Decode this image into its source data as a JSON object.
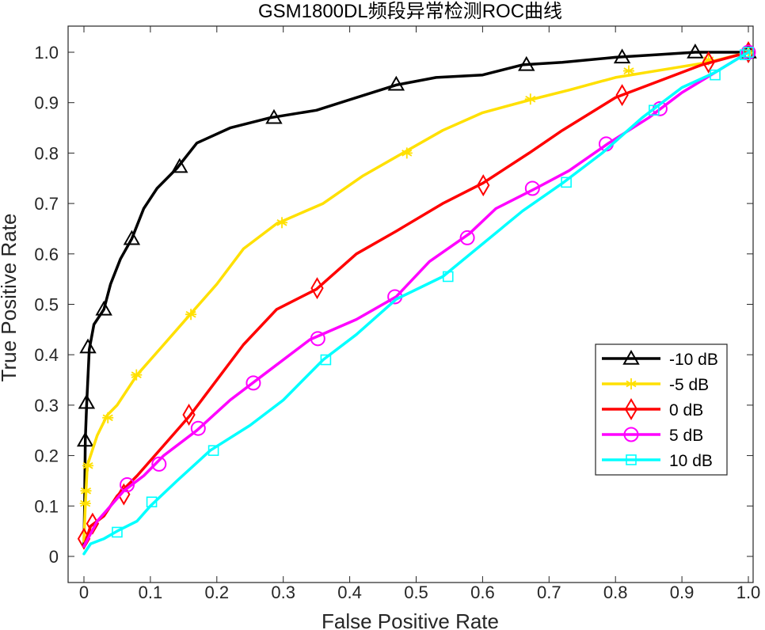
{
  "chart_data": {
    "type": "line",
    "title": "GSM1800DL频段异常检测ROC曲线",
    "xlabel": "False Positive Rate",
    "ylabel": "True Positive Rate",
    "xlim": [
      0,
      1
    ],
    "ylim": [
      0,
      1
    ],
    "xticks": [
      "0",
      "0.1",
      "0.2",
      "0.3",
      "0.4",
      "0.5",
      "0.6",
      "0.7",
      "0.8",
      "0.9",
      "1.0"
    ],
    "yticks": [
      "0",
      "0.1",
      "0.2",
      "0.3",
      "0.4",
      "0.5",
      "0.6",
      "0.7",
      "0.8",
      "0.9",
      "1.0"
    ],
    "grid": false,
    "legend_position": "lower-right",
    "series": [
      {
        "name": "-10 dB",
        "color": "#000000",
        "marker": "triangle",
        "x": [
          0,
          0.001,
          0.002,
          0.004,
          0.008,
          0.015,
          0.03,
          0.04,
          0.055,
          0.072,
          0.09,
          0.11,
          0.14,
          0.17,
          0.22,
          0.28,
          0.35,
          0.41,
          0.47,
          0.53,
          0.6,
          0.66,
          0.72,
          0.8,
          0.86,
          0.92,
          0.97,
          1.0
        ],
        "y": [
          0.02,
          0.1,
          0.23,
          0.3,
          0.41,
          0.46,
          0.49,
          0.54,
          0.59,
          0.63,
          0.69,
          0.73,
          0.77,
          0.82,
          0.85,
          0.87,
          0.885,
          0.91,
          0.935,
          0.95,
          0.955,
          0.975,
          0.98,
          0.99,
          0.995,
          1.0,
          1.0,
          1.0
        ],
        "markers_at": [
          [
            0.002,
            0.23
          ],
          [
            0.004,
            0.305
          ],
          [
            0.006,
            0.415
          ],
          [
            0.03,
            0.49
          ],
          [
            0.072,
            0.63
          ],
          [
            0.144,
            0.773
          ],
          [
            0.286,
            0.87
          ],
          [
            0.47,
            0.936
          ],
          [
            0.666,
            0.975
          ],
          [
            0.81,
            0.99
          ],
          [
            0.92,
            1.0
          ],
          [
            1.0,
            1.0
          ]
        ]
      },
      {
        "name": "-5 dB",
        "color": "#ffe000",
        "marker": "asterisk",
        "x": [
          0,
          0.002,
          0.005,
          0.02,
          0.035,
          0.05,
          0.08,
          0.12,
          0.16,
          0.2,
          0.24,
          0.29,
          0.36,
          0.42,
          0.48,
          0.54,
          0.6,
          0.67,
          0.73,
          0.8,
          0.87,
          0.94,
          1.0
        ],
        "y": [
          0.03,
          0.1,
          0.18,
          0.24,
          0.28,
          0.3,
          0.36,
          0.42,
          0.48,
          0.54,
          0.61,
          0.66,
          0.7,
          0.755,
          0.8,
          0.845,
          0.88,
          0.905,
          0.925,
          0.95,
          0.965,
          0.98,
          1.0
        ],
        "markers_at": [
          [
            0.002,
            0.105
          ],
          [
            0.003,
            0.13
          ],
          [
            0.006,
            0.18
          ],
          [
            0.036,
            0.275
          ],
          [
            0.079,
            0.36
          ],
          [
            0.161,
            0.48
          ],
          [
            0.298,
            0.662
          ],
          [
            0.486,
            0.8
          ],
          [
            0.672,
            0.907
          ],
          [
            0.82,
            0.963
          ],
          [
            0.94,
            0.985
          ],
          [
            1.0,
            1.0
          ]
        ]
      },
      {
        "name": "0 dB",
        "color": "#ff0000",
        "marker": "diamond",
        "x": [
          0,
          0.01,
          0.03,
          0.05,
          0.08,
          0.12,
          0.16,
          0.2,
          0.24,
          0.29,
          0.35,
          0.41,
          0.47,
          0.54,
          0.6,
          0.67,
          0.72,
          0.8,
          0.87,
          0.93,
          1.0
        ],
        "y": [
          0.02,
          0.06,
          0.08,
          0.12,
          0.16,
          0.22,
          0.28,
          0.35,
          0.42,
          0.49,
          0.53,
          0.6,
          0.645,
          0.7,
          0.74,
          0.8,
          0.845,
          0.91,
          0.945,
          0.975,
          1.0
        ],
        "markers_at": [
          [
            0.0,
            0.035
          ],
          [
            0.013,
            0.065
          ],
          [
            0.06,
            0.123
          ],
          [
            0.158,
            0.281
          ],
          [
            0.351,
            0.532
          ],
          [
            0.601,
            0.736
          ],
          [
            0.81,
            0.915
          ],
          [
            0.94,
            0.98
          ],
          [
            1.0,
            1.0
          ]
        ]
      },
      {
        "name": "5 dB",
        "color": "#ff00ff",
        "marker": "circle",
        "x": [
          0,
          0.02,
          0.04,
          0.06,
          0.09,
          0.12,
          0.17,
          0.22,
          0.27,
          0.34,
          0.41,
          0.47,
          0.52,
          0.58,
          0.62,
          0.68,
          0.73,
          0.79,
          0.85,
          0.9,
          0.95,
          1.0
        ],
        "y": [
          0.02,
          0.07,
          0.1,
          0.13,
          0.16,
          0.2,
          0.25,
          0.31,
          0.36,
          0.43,
          0.47,
          0.515,
          0.585,
          0.64,
          0.69,
          0.73,
          0.765,
          0.82,
          0.87,
          0.92,
          0.96,
          1.0
        ],
        "markers_at": [
          [
            0.065,
            0.142
          ],
          [
            0.113,
            0.183
          ],
          [
            0.172,
            0.254
          ],
          [
            0.255,
            0.344
          ],
          [
            0.352,
            0.432
          ],
          [
            0.468,
            0.515
          ],
          [
            0.577,
            0.632
          ],
          [
            0.675,
            0.73
          ],
          [
            0.786,
            0.818
          ],
          [
            0.867,
            0.888
          ],
          [
            1.0,
            1.0
          ]
        ]
      },
      {
        "name": "10 dB",
        "color": "#00ffff",
        "marker": "square",
        "x": [
          0,
          0.01,
          0.03,
          0.05,
          0.08,
          0.1,
          0.14,
          0.19,
          0.25,
          0.3,
          0.36,
          0.41,
          0.47,
          0.54,
          0.6,
          0.66,
          0.72,
          0.78,
          0.84,
          0.9,
          0.95,
          1.0
        ],
        "y": [
          0.005,
          0.025,
          0.035,
          0.05,
          0.07,
          0.1,
          0.15,
          0.21,
          0.26,
          0.31,
          0.39,
          0.44,
          0.51,
          0.555,
          0.62,
          0.685,
          0.74,
          0.8,
          0.87,
          0.93,
          0.96,
          1.0
        ],
        "markers_at": [
          [
            0.05,
            0.048
          ],
          [
            0.102,
            0.108
          ],
          [
            0.195,
            0.21
          ],
          [
            0.364,
            0.39
          ],
          [
            0.548,
            0.555
          ],
          [
            0.726,
            0.742
          ],
          [
            0.858,
            0.885
          ],
          [
            0.95,
            0.955
          ],
          [
            0.995,
            0.995
          ],
          [
            1.0,
            1.0
          ]
        ]
      }
    ]
  }
}
